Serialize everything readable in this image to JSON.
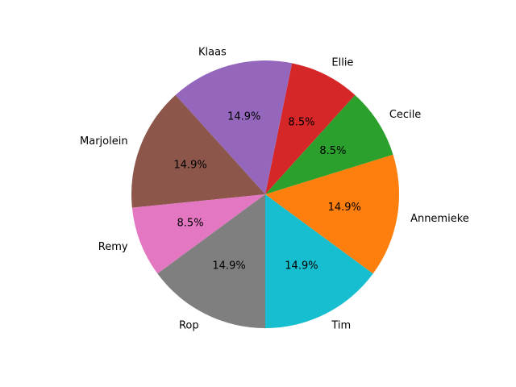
{
  "chart_data": {
    "type": "pie",
    "labels": [
      "Tim",
      "Annemieke",
      "Cecile",
      "Ellie",
      "Klaas",
      "Marjolein",
      "Remy",
      "Rop"
    ],
    "values": [
      14.9,
      14.9,
      8.5,
      8.5,
      14.9,
      14.9,
      8.5,
      14.9
    ],
    "percent_labels": [
      "14.9%",
      "14.9%",
      "8.5%",
      "8.5%",
      "14.9%",
      "14.9%",
      "8.5%",
      "14.9%"
    ],
    "colors": [
      "#17becf",
      "#ff7f0e",
      "#2ca02c",
      "#d62728",
      "#9467bd",
      "#8c564b",
      "#e377c2",
      "#7f7f7f"
    ],
    "title": "",
    "legend": false
  }
}
